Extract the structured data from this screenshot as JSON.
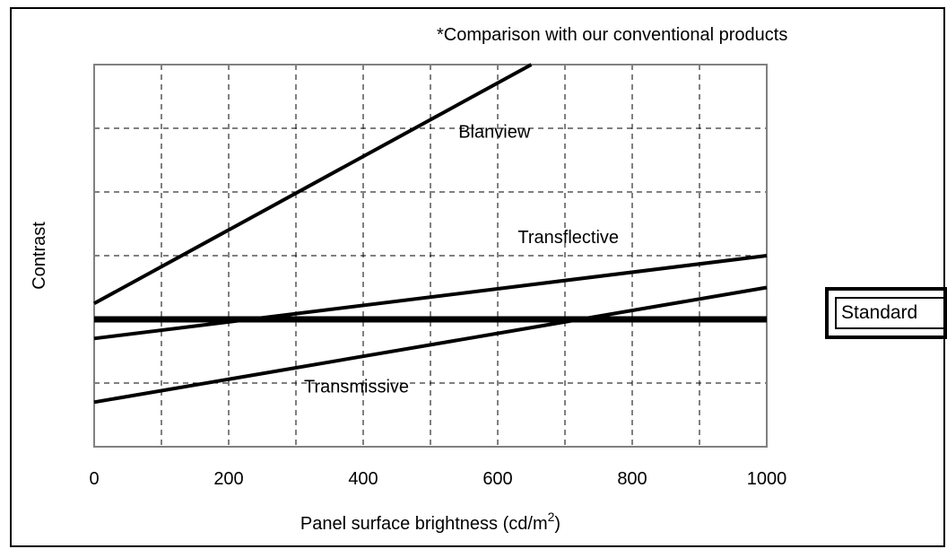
{
  "note": "*Comparison with our conventional products",
  "chart_data": {
    "type": "line",
    "xlabel": "Panel surface brightness (cd/m",
    "xlabel_sup": "2",
    "xlabel_suffix": ")",
    "ylabel": "Contrast",
    "xlim": [
      0,
      1000
    ],
    "ylim": [
      0,
      6
    ],
    "x_ticks": [
      0,
      200,
      400,
      600,
      800,
      1000
    ],
    "x_tick_labels": [
      "0",
      "200",
      "400",
      "600",
      "800",
      "1000"
    ],
    "x_grid": [
      100,
      200,
      300,
      400,
      500,
      600,
      700,
      800,
      900
    ],
    "y_grid": [
      1,
      2,
      3,
      4,
      5
    ],
    "grid": true,
    "y_tick_labels_shown": false,
    "series": [
      {
        "name": "Blanview",
        "style": "normal",
        "points": [
          [
            0,
            2.25
          ],
          [
            650,
            6.0
          ]
        ]
      },
      {
        "name": "Transflective",
        "style": "normal",
        "points": [
          [
            0,
            1.7
          ],
          [
            1000,
            3.0
          ]
        ]
      },
      {
        "name": "Transmissive",
        "style": "normal",
        "points": [
          [
            0,
            0.7
          ],
          [
            1000,
            2.5
          ]
        ]
      },
      {
        "name": "Standard",
        "style": "bold",
        "points": [
          [
            0,
            2.0
          ],
          [
            1000,
            2.0
          ]
        ]
      }
    ],
    "label_anchor_x": {
      "Blanview": 595,
      "Transflective": 705,
      "Transmissive": 390
    },
    "label_anchor_y": {
      "Blanview": 4.85,
      "Transflective": 3.2,
      "Transmissive": 0.85
    }
  },
  "standard_label": "Standard"
}
